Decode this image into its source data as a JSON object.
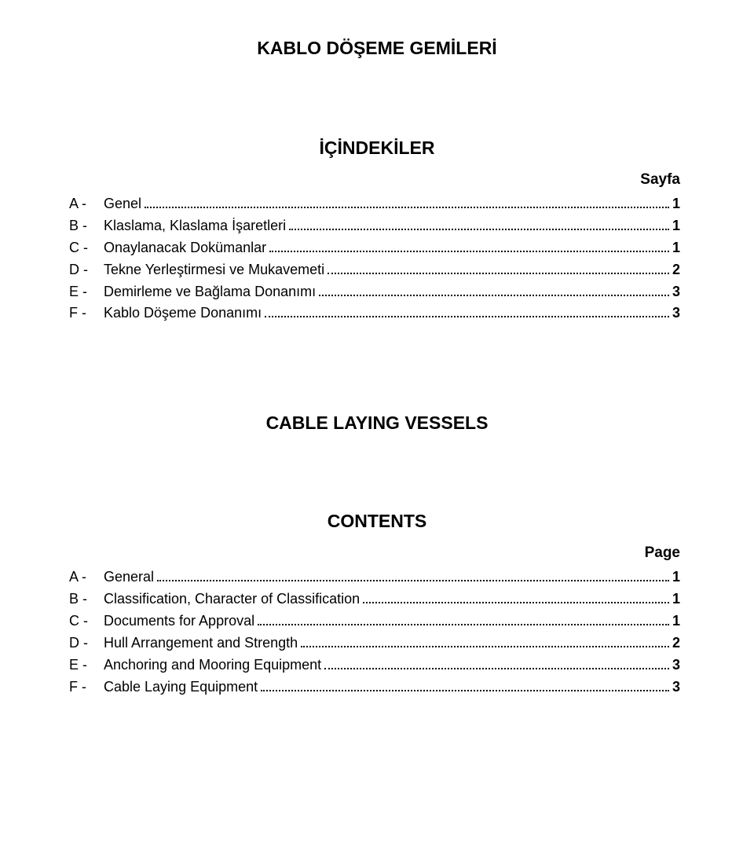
{
  "colors": {
    "background": "#ffffff",
    "text": "#000000",
    "dots": "#000000"
  },
  "typography": {
    "font_family": "Arial",
    "title_fontsize": 23,
    "body_fontsize": 18,
    "label_fontsize": 19
  },
  "section1": {
    "title": "KABLO DÖŞEME GEMİLERİ",
    "heading": "İÇİNDEKİLER",
    "page_label": "Sayfa",
    "items": [
      {
        "prefix": "A -",
        "label": "Genel",
        "page": "1"
      },
      {
        "prefix": "B -",
        "label": "Klaslama, Klaslama İşaretleri",
        "page": "1"
      },
      {
        "prefix": "C -",
        "label": "Onaylanacak Dokümanlar",
        "page": "1"
      },
      {
        "prefix": "D -",
        "label": "Tekne Yerleştirmesi ve Mukavemeti",
        "page": "2"
      },
      {
        "prefix": "E -",
        "label": "Demirleme ve Bağlama Donanımı",
        "page": "3"
      },
      {
        "prefix": "F -",
        "label": "Kablo Döşeme  Donanımı",
        "page": "3"
      }
    ]
  },
  "section2": {
    "title": "CABLE LAYING VESSELS",
    "heading": "CONTENTS",
    "page_label": "Page",
    "items": [
      {
        "prefix": "A -",
        "label": "General",
        "page": "1"
      },
      {
        "prefix": "B -",
        "label": "Classification, Character of Classification",
        "page": "1"
      },
      {
        "prefix": "C -",
        "label": "Documents for Approval",
        "page": "1"
      },
      {
        "prefix": "D -",
        "label": "Hull Arrangement and Strength",
        "page": "2"
      },
      {
        "prefix": "E -",
        "label": "Anchoring and Mooring Equipment",
        "page": "3"
      },
      {
        "prefix": "F -",
        "label": "Cable Laying Equipment",
        "page": "3"
      }
    ]
  }
}
